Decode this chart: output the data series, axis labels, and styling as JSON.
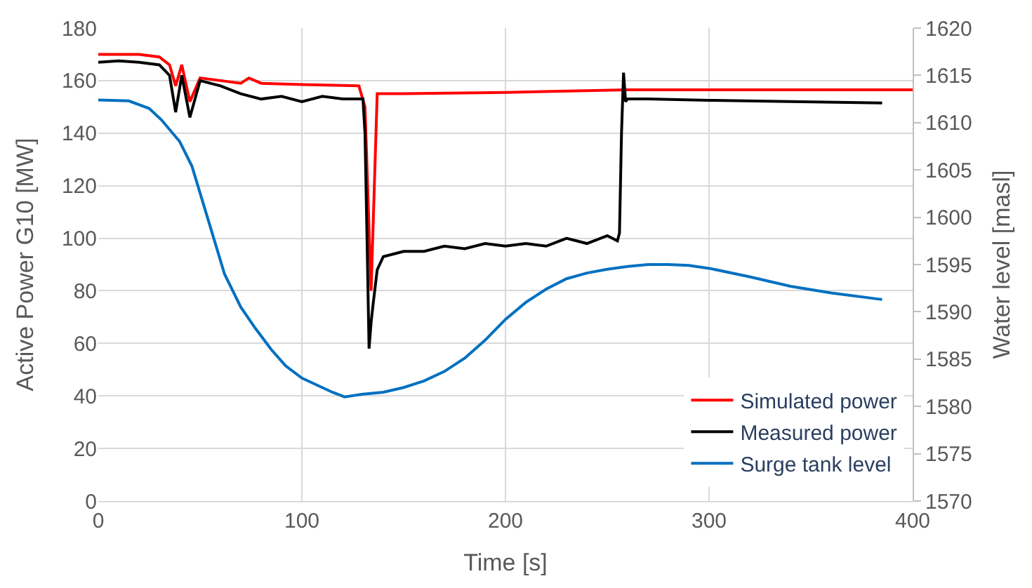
{
  "chart_data": {
    "type": "line",
    "xlabel": "Time [s]",
    "ylabel": "Active Power G10 [MW]",
    "y2label": "Water level [masl]",
    "xlim": [
      0,
      400
    ],
    "xticks": [
      0,
      100,
      200,
      300,
      400
    ],
    "ylim": [
      0,
      180
    ],
    "yticks": [
      0,
      20,
      40,
      60,
      80,
      100,
      120,
      140,
      160,
      180
    ],
    "y2lim": [
      1570,
      1620
    ],
    "y2ticks": [
      1570,
      1575,
      1580,
      1585,
      1590,
      1595,
      1600,
      1605,
      1610,
      1615,
      1620
    ],
    "grid": true,
    "legend": "bottom right",
    "marker": "none",
    "line_style": "solid",
    "series": [
      {
        "name": "Simulated power",
        "color": "#ff0000",
        "x": [
          0,
          20,
          30,
          35,
          38,
          41,
          45,
          50,
          60,
          70,
          74,
          80,
          100,
          128,
          131,
          134,
          137,
          150,
          200,
          260,
          300,
          385,
          400
        ],
        "values": [
          170,
          170,
          169,
          166,
          158,
          166,
          152,
          161,
          160,
          159,
          161,
          159,
          158.5,
          158,
          150,
          80,
          155,
          155,
          155.5,
          156.5,
          156.5,
          156.5,
          156.5
        ]
      },
      {
        "name": "Measured power",
        "color": "#000000",
        "x": [
          0,
          10,
          20,
          30,
          35,
          38,
          41,
          45,
          50,
          55,
          60,
          70,
          80,
          90,
          100,
          110,
          120,
          130,
          131,
          132,
          133,
          134,
          135,
          137,
          140,
          145,
          150,
          160,
          170,
          180,
          190,
          200,
          210,
          220,
          230,
          240,
          250,
          255,
          256,
          257,
          258,
          259,
          260,
          270,
          300,
          340,
          385
        ],
        "values": [
          167,
          167.5,
          167,
          166,
          162,
          148,
          162,
          146,
          160,
          159,
          158,
          155,
          153,
          154,
          152,
          154,
          153,
          153,
          140,
          100,
          58,
          68,
          75,
          88,
          93,
          94,
          95,
          95,
          97,
          96,
          98,
          97,
          98,
          97,
          100,
          98,
          101,
          99,
          102,
          140,
          163,
          152,
          153,
          153,
          152.5,
          152,
          151.5
        ]
      },
      {
        "name": "Surge tank level",
        "color": "#0070c0",
        "axis": "y2",
        "x": [
          0,
          15,
          25,
          31,
          40,
          46,
          55,
          62,
          70,
          77,
          85,
          92,
          100,
          107,
          115,
          121,
          130,
          140,
          150,
          160,
          170,
          180,
          190,
          200,
          210,
          220,
          230,
          240,
          250,
          260,
          270,
          280,
          290,
          300,
          320,
          340,
          360,
          385
        ],
        "values": [
          1612.4,
          1612.3,
          1611.5,
          1610.3,
          1608,
          1605.4,
          1599,
          1594,
          1590.5,
          1588.3,
          1586,
          1584.3,
          1583,
          1582.3,
          1581.5,
          1581,
          1581.3,
          1581.5,
          1582,
          1582.7,
          1583.7,
          1585.1,
          1587,
          1589.2,
          1591,
          1592.4,
          1593.5,
          1594.1,
          1594.5,
          1594.8,
          1595,
          1595,
          1594.9,
          1594.6,
          1593.7,
          1592.7,
          1592,
          1591.3
        ]
      }
    ]
  }
}
